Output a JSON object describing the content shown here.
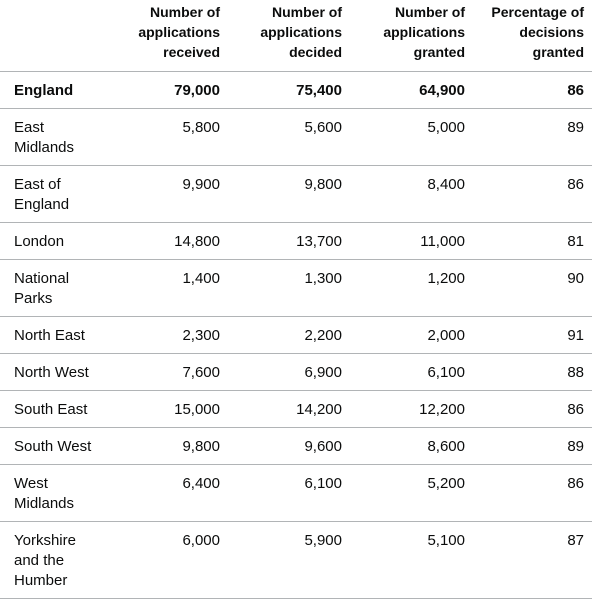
{
  "table": {
    "headers": [
      "",
      "Number of applications received",
      "Number of applications decided",
      "Number of applications granted",
      "Percentage of decisions granted"
    ],
    "rows": [
      [
        "England",
        "79,000",
        "75,400",
        "64,900",
        "86"
      ],
      [
        "East Midlands",
        "5,800",
        "5,600",
        "5,000",
        "89"
      ],
      [
        "East of England",
        "9,900",
        "9,800",
        "8,400",
        "86"
      ],
      [
        "London",
        "14,800",
        "13,700",
        "11,000",
        "81"
      ],
      [
        "National Parks",
        "1,400",
        "1,300",
        "1,200",
        "90"
      ],
      [
        "North East",
        "2,300",
        "2,200",
        "2,000",
        "91"
      ],
      [
        "North West",
        "7,600",
        "6,900",
        "6,100",
        "88"
      ],
      [
        "South East",
        "15,000",
        "14,200",
        "12,200",
        "86"
      ],
      [
        "South West",
        "9,800",
        "9,600",
        "8,600",
        "89"
      ],
      [
        "West Midlands",
        "6,400",
        "6,100",
        "5,200",
        "86"
      ],
      [
        "Yorkshire and the Humber",
        "6,000",
        "5,900",
        "5,100",
        "87"
      ]
    ]
  }
}
